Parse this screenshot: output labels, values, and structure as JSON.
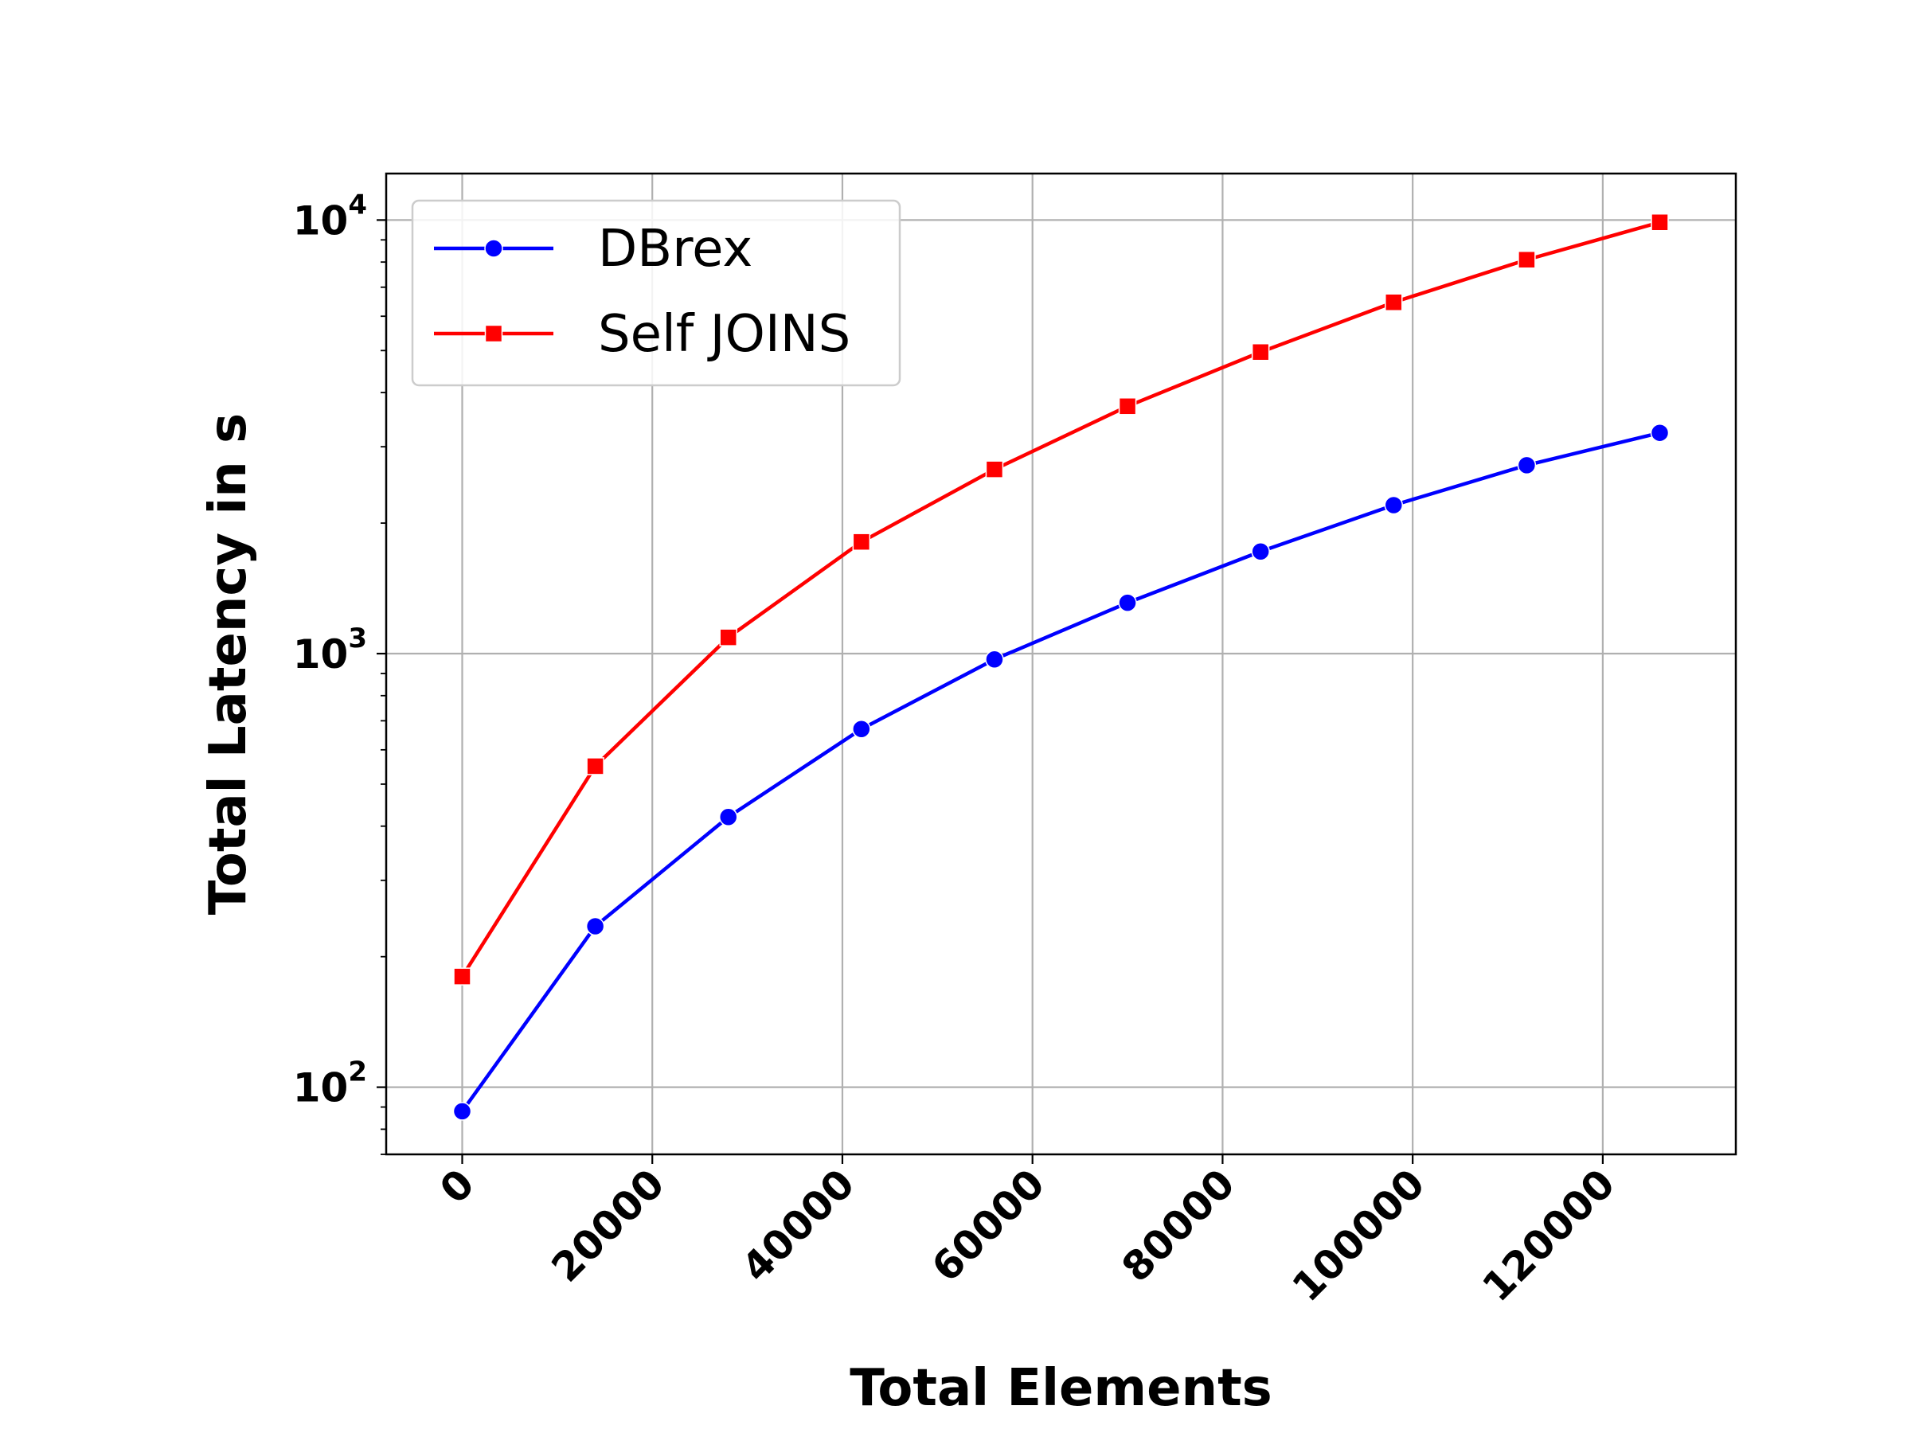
{
  "chart_data": {
    "type": "line",
    "xlabel": "Total Elements",
    "ylabel": "Total Latency in s",
    "yscale": "log",
    "xlim": [
      -8000,
      134000
    ],
    "ylim": [
      70,
      12800
    ],
    "x_ticks": [
      0,
      20000,
      40000,
      60000,
      80000,
      100000,
      120000
    ],
    "x_tick_labels": [
      "0",
      "20000",
      "40000",
      "60000",
      "80000",
      "100000",
      "120000"
    ],
    "y_ticks": [
      100,
      1000,
      10000
    ],
    "y_tick_labels": [
      {
        "base": "10",
        "exp": "2"
      },
      {
        "base": "10",
        "exp": "3"
      },
      {
        "base": "10",
        "exp": "4"
      }
    ],
    "grid": true,
    "legend_position": "top-left",
    "x": [
      0,
      14000,
      28000,
      42000,
      56000,
      70000,
      84000,
      98000,
      112000,
      126000
    ],
    "series": [
      {
        "name": "DBrex",
        "color": "#0000ff",
        "marker": "circle",
        "values": [
          88,
          235,
          420,
          670,
          970,
          1310,
          1720,
          2200,
          2720,
          3230
        ]
      },
      {
        "name": "Self JOINS",
        "color": "#ff0000",
        "marker": "square",
        "values": [
          180,
          550,
          1090,
          1810,
          2660,
          3720,
          4960,
          6460,
          8100,
          9880
        ]
      }
    ]
  }
}
